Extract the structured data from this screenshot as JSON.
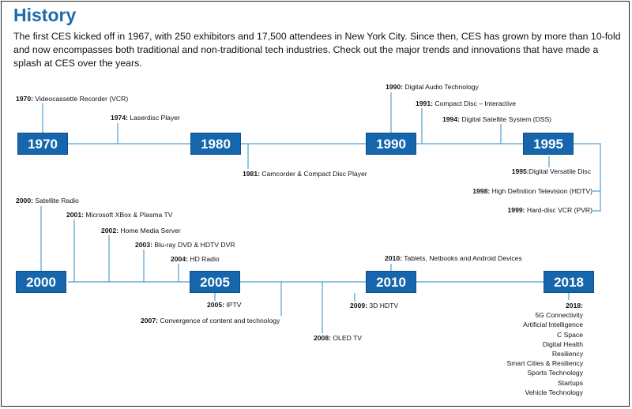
{
  "title": "History",
  "intro": "The first CES kicked off in 1967, with 250 exhibitors and 17,500 attendees in New York City. Since then, CES has grown by more than 10-fold and now encompasses both traditional and non-traditional tech industries. Check out the major trends and innovations that have made a splash at CES over the years.",
  "row1": {
    "boxes": [
      "1970",
      "1980",
      "1990",
      "1995"
    ],
    "events": [
      {
        "year": "1970:",
        "text": "Videocassette Recorder (VCR)"
      },
      {
        "year": "1974:",
        "text": "Laserdisc Player"
      },
      {
        "year": "1981:",
        "text": "Camcorder & Compact Disc Player"
      },
      {
        "year": "1990:",
        "text": "Digital Audio Technology"
      },
      {
        "year": "1991:",
        "text": "Compact Disc – Interactive"
      },
      {
        "year": "1994:",
        "text": "Digital Satellite System (DSS)"
      },
      {
        "year": "1995:",
        "text": "Digital Versatile Disc"
      },
      {
        "year": "1998:",
        "text": "High Definition Television (HDTV)"
      },
      {
        "year": "1999:",
        "text": "Hard-disc VCR (PVR)"
      }
    ]
  },
  "row2": {
    "boxes": [
      "2000",
      "2005",
      "2010",
      "2018"
    ],
    "events": [
      {
        "year": "2000:",
        "text": "Satellite Radio"
      },
      {
        "year": "2001:",
        "text": "Microsoft XBox & Plasma TV"
      },
      {
        "year": "2002:",
        "text": "Home Media Server"
      },
      {
        "year": "2003:",
        "text": "Blu-ray DVD & HDTV DVR"
      },
      {
        "year": "2004:",
        "text": "HD Radio"
      },
      {
        "year": "2005:",
        "text": "IPTV"
      },
      {
        "year": "2007:",
        "text": "Convergence of content and technology"
      },
      {
        "year": "2008:",
        "text": "OLED TV"
      },
      {
        "year": "2009:",
        "text": "3D HDTV"
      },
      {
        "year": "2010:",
        "text": "Tablets, Netbooks and Android Devices"
      }
    ],
    "list_heading": "2018:",
    "list_items": [
      "5G Connectivity",
      "Artificial Intelligence",
      "C Space",
      "Digital Health",
      "Resiliency",
      "Smart Cities & Resiliency",
      "Sports Technology",
      "Startups",
      "Vehicle Technology"
    ]
  },
  "colors": {
    "accent": "#1566ad",
    "title": "#1e6aa8",
    "line": "#4f9fd0"
  }
}
